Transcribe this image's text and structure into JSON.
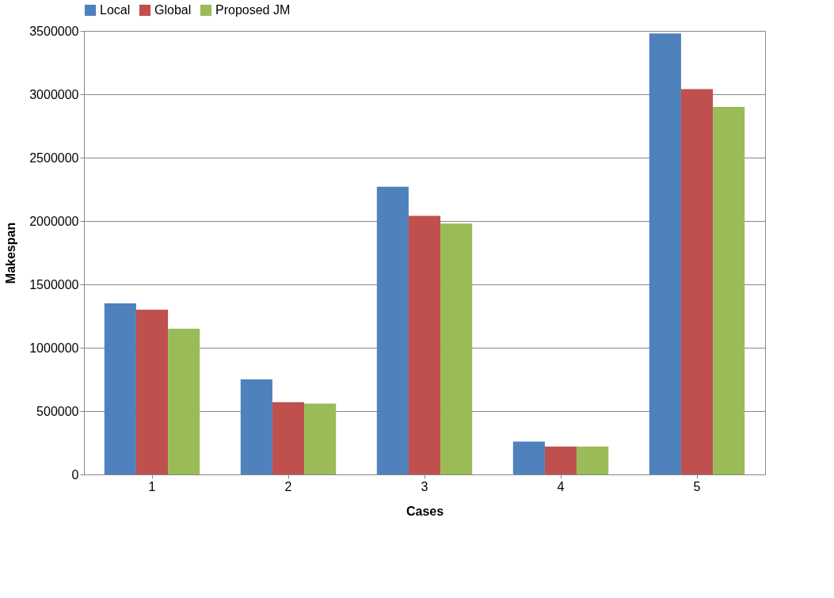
{
  "chart_data": {
    "type": "bar",
    "xlabel": "Cases",
    "ylabel": "Makespan",
    "categories": [
      "1",
      "2",
      "3",
      "4",
      "5"
    ],
    "series": [
      {
        "name": "Local",
        "color": "#4f81bd",
        "values": [
          1350000,
          750000,
          2270000,
          260000,
          3480000
        ]
      },
      {
        "name": "Global",
        "color": "#c0504d",
        "values": [
          1300000,
          570000,
          2040000,
          220000,
          3040000
        ]
      },
      {
        "name": "Proposed JM",
        "color": "#9bbb59",
        "values": [
          1150000,
          560000,
          1980000,
          220000,
          2900000
        ]
      }
    ],
    "ylim": [
      0,
      3500000
    ],
    "yticks": [
      0,
      500000,
      1000000,
      1500000,
      2000000,
      2500000,
      3000000,
      3500000
    ],
    "grid": "y",
    "legend": "top"
  }
}
